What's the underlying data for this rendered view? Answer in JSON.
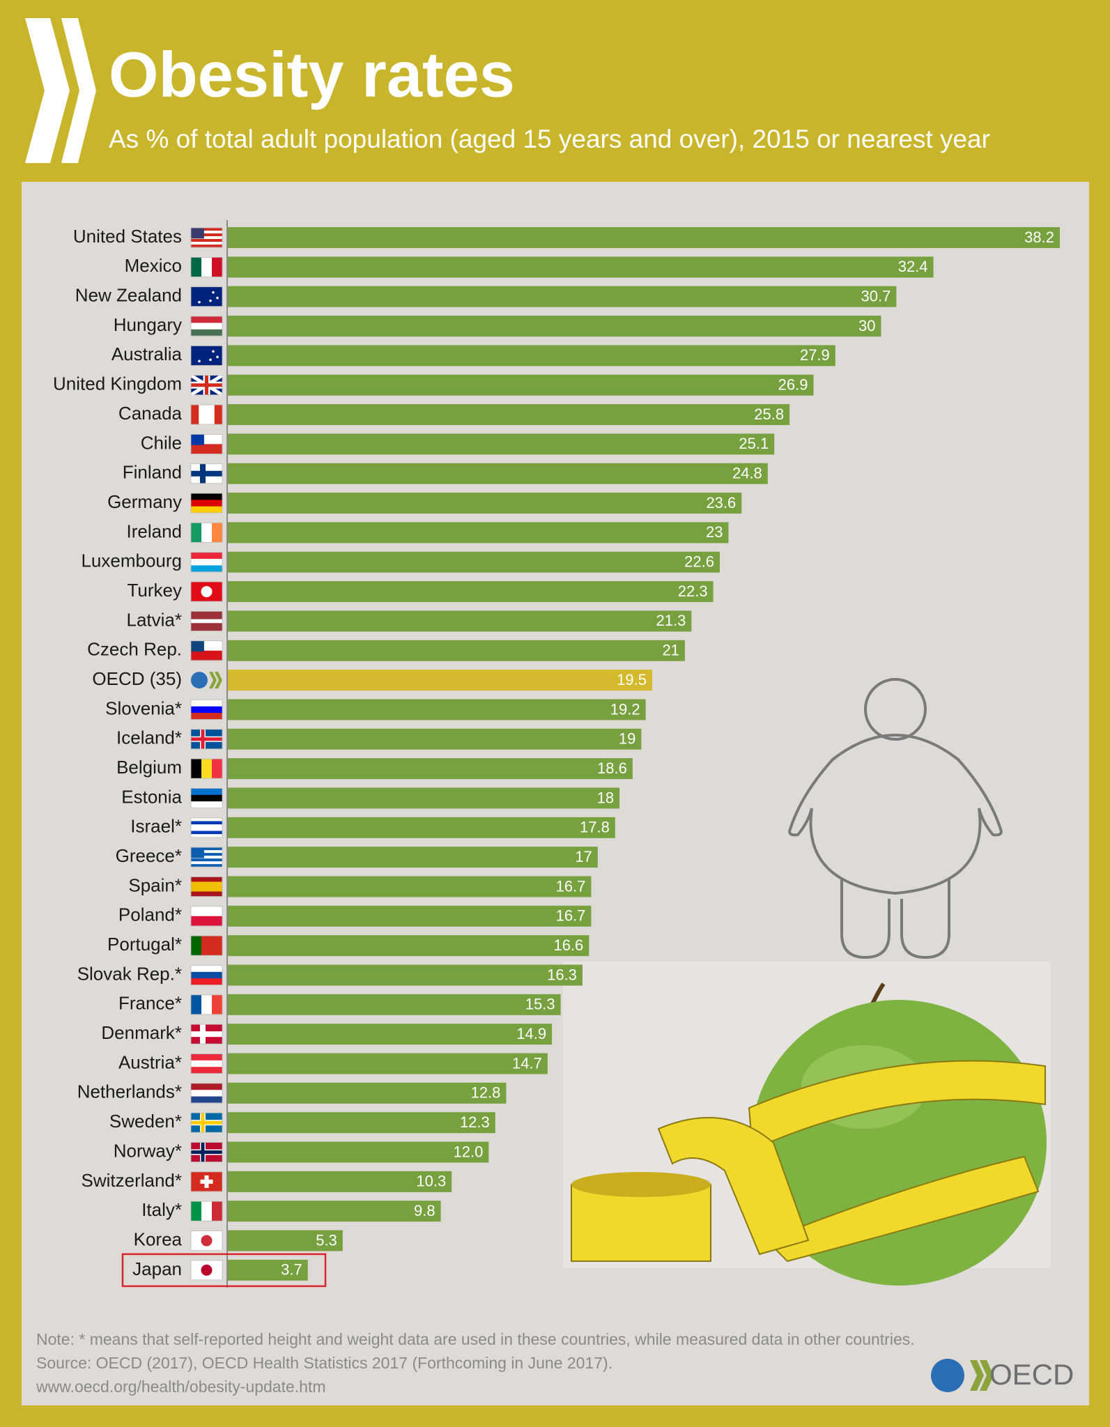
{
  "chart_data": {
    "type": "hbar",
    "title": "Obesity rates",
    "subtitle": "As % of total adult population (aged 15 years and over), 2015 or nearest year",
    "categories": [
      "United States",
      "Mexico",
      "New Zealand",
      "Hungary",
      "Australia",
      "United Kingdom",
      "Canada",
      "Chile",
      "Finland",
      "Germany",
      "Ireland",
      "Luxembourg",
      "Turkey",
      "Latvia*",
      "Czech Rep.",
      "OECD (35)",
      "Slovenia*",
      "Iceland*",
      "Belgium",
      "Estonia",
      "Israel*",
      "Greece*",
      "Spain*",
      "Poland*",
      "Portugal*",
      "Slovak Rep.*",
      "France*",
      "Denmark*",
      "Austria*",
      "Netherlands*",
      "Sweden*",
      "Norway*",
      "Switzerland*",
      "Italy*",
      "Korea",
      "Japan"
    ],
    "values": [
      38.2,
      32.4,
      30.7,
      30,
      27.9,
      26.9,
      25.8,
      25.1,
      24.8,
      23.6,
      23,
      22.6,
      22.3,
      21.3,
      21,
      19.5,
      19.2,
      19,
      18.6,
      18,
      17.8,
      17,
      16.7,
      16.7,
      16.6,
      16.3,
      15.3,
      14.9,
      14.7,
      12.8,
      12.3,
      12.0,
      10.3,
      9.8,
      5.3,
      3.7
    ],
    "value_labels": [
      "38.2",
      "32.4",
      "30.7",
      "30",
      "27.9",
      "26.9",
      "25.8",
      "25.1",
      "24.8",
      "23.6",
      "23",
      "22.6",
      "22.3",
      "21.3",
      "21",
      "19.5",
      "19.2",
      "19",
      "18.6",
      "18",
      "17.8",
      "17",
      "16.7",
      "16.7",
      "16.6",
      "16.3",
      "15.3",
      "14.9",
      "14.7",
      "12.8",
      "12.3",
      "12.0",
      "10.3",
      "9.8",
      "5.3",
      "3.7"
    ],
    "colors": [
      "#77a03f",
      "#77a03f",
      "#77a03f",
      "#77a03f",
      "#77a03f",
      "#77a03f",
      "#77a03f",
      "#77a03f",
      "#77a03f",
      "#77a03f",
      "#77a03f",
      "#77a03f",
      "#77a03f",
      "#77a03f",
      "#77a03f",
      "#d4b92c",
      "#77a03f",
      "#77a03f",
      "#77a03f",
      "#77a03f",
      "#77a03f",
      "#77a03f",
      "#77a03f",
      "#77a03f",
      "#77a03f",
      "#77a03f",
      "#77a03f",
      "#77a03f",
      "#77a03f",
      "#77a03f",
      "#77a03f",
      "#77a03f",
      "#77a03f",
      "#77a03f",
      "#77a03f",
      "#77a03f"
    ],
    "outline": {
      "index": 35,
      "color": "#d9262b"
    },
    "notes": [
      "Note: * means that self-reported height and weight data are used in these countries, while measured data in other countries.",
      "Source: OECD (2017), OECD Health Statistics 2017 (Forthcoming in June 2017).",
      "www.oecd.org/health/obesity-update.htm"
    ],
    "logo_text": "OECD"
  }
}
